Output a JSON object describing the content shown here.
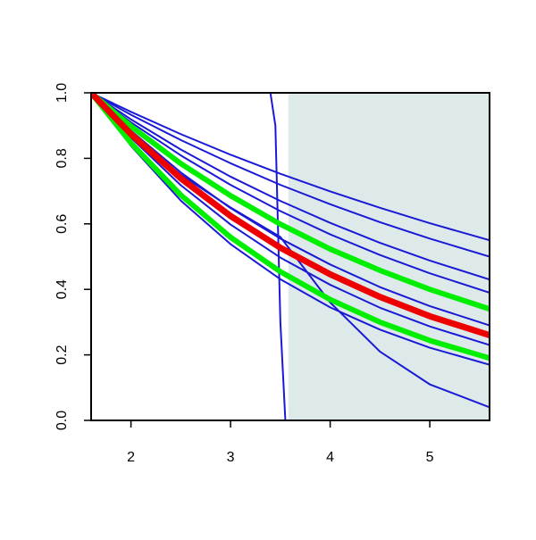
{
  "chart_data": {
    "type": "line",
    "x": [
      1.6,
      2,
      2.5,
      3,
      3.5,
      4,
      4.5,
      5,
      5.6
    ],
    "xlim": [
      1.6,
      5.6
    ],
    "ylim": [
      0,
      1
    ],
    "xticks": [
      2,
      3,
      4,
      5
    ],
    "yticks": [
      {
        "value": 0,
        "label": "0.0"
      },
      0.2,
      0.4,
      0.6,
      0.8,
      {
        "value": 1,
        "label": "1.0"
      }
    ],
    "shade": {
      "xlim": [
        3.58,
        5.6
      ],
      "color": "#deeaea"
    },
    "series": [
      {
        "color": "#1a1ad6",
        "width": 2,
        "values": [
          1,
          0.942,
          0.874,
          0.811,
          0.753,
          0.699,
          0.649,
          0.602,
          0.55
        ]
      },
      {
        "color": "#1a1ad6",
        "width": 2,
        "values": [
          1,
          0.933,
          0.856,
          0.785,
          0.719,
          0.66,
          0.605,
          0.555,
          0.5
        ]
      },
      {
        "color": "#1a1ad6",
        "width": 2,
        "values": [
          1,
          0.919,
          0.827,
          0.744,
          0.67,
          0.603,
          0.542,
          0.488,
          0.43
        ]
      },
      {
        "color": "#1a1ad6",
        "width": 2,
        "values": [
          1,
          0.91,
          0.809,
          0.719,
          0.639,
          0.568,
          0.505,
          0.449,
          0.39
        ]
      },
      {
        "color": "#1a1ad6",
        "width": 2,
        "values": [
          1,
          0.884,
          0.757,
          0.648,
          0.555,
          0.476,
          0.407,
          0.349,
          0.29
        ]
      },
      {
        "color": "#1a1ad6",
        "width": 2,
        "values": [
          1,
          0.863,
          0.718,
          0.598,
          0.497,
          0.414,
          0.344,
          0.287,
          0.23
        ]
      },
      {
        "color": "#1a1ad6",
        "width": 2,
        "values": [
          1,
          0.838,
          0.671,
          0.538,
          0.431,
          0.345,
          0.277,
          0.222,
          0.17
        ]
      },
      {
        "color": "#1a1ad6",
        "width": 2,
        "values": [
          1,
          0.87,
          0.75,
          0.65,
          0.56,
          0.36,
          0.21,
          0.11,
          0.04
        ]
      },
      {
        "color": "#1a1ad6",
        "width": 2,
        "x": [
          1.6,
          3.4,
          3.45,
          3.5,
          3.55,
          5.6
        ],
        "values": [
          1,
          1,
          0.9,
          0.3,
          0,
          0
        ]
      },
      {
        "color": "#00ee00",
        "width": 6,
        "values": [
          1,
          0.898,
          0.784,
          0.686,
          0.599,
          0.523,
          0.458,
          0.4,
          0.34
        ]
      },
      {
        "color": "#00ee00",
        "width": 6,
        "values": [
          1,
          0.847,
          0.688,
          0.559,
          0.454,
          0.369,
          0.3,
          0.244,
          0.19
        ]
      },
      {
        "color": "#ee0000",
        "width": 7,
        "values": [
          1,
          0.874,
          0.739,
          0.624,
          0.527,
          0.446,
          0.377,
          0.318,
          0.26
        ]
      }
    ]
  }
}
